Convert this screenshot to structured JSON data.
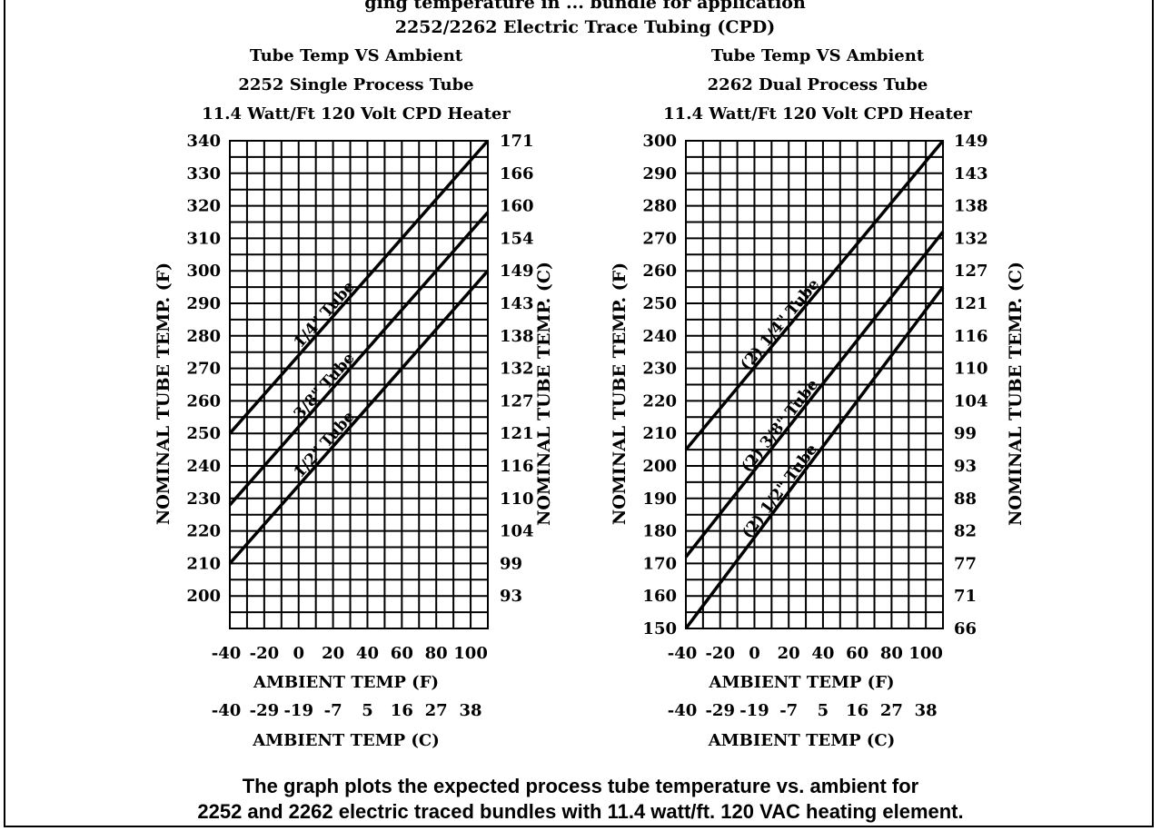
{
  "header_fragment": "ging temperature in ... bundle for   application",
  "main_title": "2252/2262 Electric Trace Tubing (CPD)",
  "caption": {
    "line1": "The graph plots the expected process tube temperature vs. ambient for",
    "line2": "2252 and 2262 electric traced bundles with 11.4 watt/ft. 120 VAC heating element."
  },
  "chart_data": [
    {
      "type": "line",
      "title_lines": [
        "Tube Temp VS Ambient",
        "2252 Single Process Tube",
        "11.4 Watt/Ft 120 Volt CPD Heater"
      ],
      "xlabel": "AMBIENT TEMP (F)",
      "xlabel2": "AMBIENT TEMP (C)",
      "ylabel": "NOMINAL TUBE TEMP. (F)",
      "ylabel2": "NOMINAL TUBE TEMP. (C)",
      "xlim": [
        -40,
        110
      ],
      "ylim": [
        190,
        340
      ],
      "x_ticks": [
        "-40",
        "-20",
        "0",
        "20",
        "40",
        "60",
        "80",
        "100"
      ],
      "x_ticks_c": [
        "-40",
        "-29",
        "-19",
        "-7",
        "5",
        "16",
        "27",
        "38"
      ],
      "y_ticks": [
        "340",
        "330",
        "320",
        "310",
        "300",
        "290",
        "280",
        "270",
        "260",
        "250",
        "240",
        "230",
        "220",
        "210",
        "200"
      ],
      "y_ticks_c": [
        "171",
        "166",
        "160",
        "154",
        "149",
        "143",
        "138",
        "132",
        "127",
        "121",
        "116",
        "110",
        "104",
        "99",
        "93"
      ],
      "series": [
        {
          "name": "1/4\" Tube",
          "x": [
            -40,
            110
          ],
          "y": [
            250,
            340
          ]
        },
        {
          "name": "3/8\" Tube",
          "x": [
            -40,
            110
          ],
          "y": [
            228,
            318
          ]
        },
        {
          "name": "1/2\" Tube",
          "x": [
            -40,
            110
          ],
          "y": [
            210,
            300
          ]
        }
      ]
    },
    {
      "type": "line",
      "title_lines": [
        "Tube Temp VS Ambient",
        "2262 Dual Process Tube",
        "11.4 Watt/Ft 120 Volt CPD Heater"
      ],
      "xlabel": "AMBIENT TEMP (F)",
      "xlabel2": "AMBIENT TEMP (C)",
      "ylabel": "NOMINAL TUBE TEMP. (F)",
      "ylabel2": "NOMINAL TUBE TEMP. (C)",
      "xlim": [
        -40,
        110
      ],
      "ylim": [
        150,
        300
      ],
      "x_ticks": [
        "-40",
        "-20",
        "0",
        "20",
        "40",
        "60",
        "80",
        "100"
      ],
      "x_ticks_c": [
        "-40",
        "-29",
        "-19",
        "-7",
        "5",
        "16",
        "27",
        "38"
      ],
      "y_ticks": [
        "300",
        "290",
        "280",
        "270",
        "260",
        "250",
        "240",
        "230",
        "220",
        "210",
        "200",
        "190",
        "180",
        "170",
        "160",
        "150"
      ],
      "y_ticks_c": [
        "149",
        "143",
        "138",
        "132",
        "127",
        "121",
        "116",
        "110",
        "104",
        "99",
        "93",
        "88",
        "82",
        "77",
        "71",
        "66"
      ],
      "series": [
        {
          "name": "(2) 1/4\" Tube",
          "x": [
            -40,
            110
          ],
          "y": [
            205,
            300
          ]
        },
        {
          "name": "(2) 3/8\" Tube",
          "x": [
            -40,
            110
          ],
          "y": [
            172,
            272
          ]
        },
        {
          "name": "(2) 1/2\" Tube",
          "x": [
            -40,
            110
          ],
          "y": [
            150,
            255
          ]
        }
      ]
    }
  ]
}
